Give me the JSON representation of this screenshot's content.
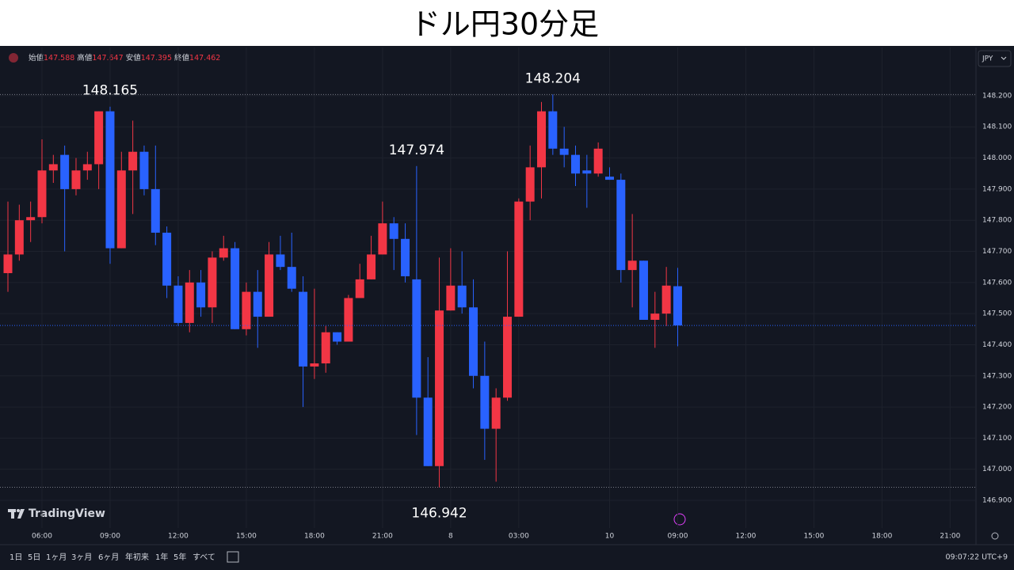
{
  "page_title": "ドル円30分足",
  "header_labels": [
    "始値",
    "高値",
    "安値",
    "終値"
  ],
  "currency": "JPY",
  "logo": "TradingView",
  "toolbar": [
    "1日",
    "5日",
    "1ヶ月",
    "3ヶ月",
    "6ヶ月",
    "年初来",
    "1年",
    "5年",
    "すべて"
  ],
  "clock": "09:07:22 UTC+9",
  "chart_data": {
    "type": "candlestick",
    "categories": [
      null,
      null,
      null,
      "06:00",
      null,
      null,
      null,
      null,
      null,
      "09:00",
      null,
      null,
      null,
      null,
      null,
      "12:00",
      null,
      null,
      null,
      null,
      null,
      "15:00",
      null,
      null,
      null,
      null,
      null,
      "18:00",
      null,
      null,
      null,
      null,
      null,
      "21:00",
      null,
      null,
      null,
      null,
      null,
      "8",
      null,
      null,
      null,
      null,
      null,
      "03:00",
      null,
      null,
      null,
      null,
      null,
      null,
      null,
      "10",
      null,
      null,
      null,
      null,
      null,
      "09:00",
      null,
      null,
      null,
      null,
      null,
      "12:00",
      null,
      null,
      null,
      null,
      null,
      "15:00",
      null,
      null,
      null,
      null,
      null,
      "18:00",
      null,
      null,
      null,
      null,
      null,
      "21:00",
      null,
      null
    ],
    "open": [
      147.63,
      147.69,
      147.8,
      147.81,
      147.96,
      148.01,
      147.9,
      147.96,
      147.98,
      148.15,
      147.71,
      147.96,
      148.02,
      147.9,
      147.76,
      147.59,
      147.47,
      147.6,
      147.52,
      147.68,
      147.71,
      147.45,
      147.57,
      147.49,
      147.69,
      147.65,
      147.57,
      147.33,
      147.34,
      147.44,
      147.41,
      147.55,
      147.61,
      147.69,
      147.79,
      147.74,
      147.61,
      147.23,
      147.01,
      147.51,
      147.59,
      147.52,
      147.3,
      147.13,
      147.23,
      147.49,
      147.86,
      147.97,
      148.15,
      148.03,
      148.01,
      147.96,
      147.95,
      147.94,
      147.93,
      147.64,
      147.67,
      147.48,
      147.5,
      147.588,
      null,
      null,
      null,
      null,
      null,
      null,
      null,
      null,
      null,
      null,
      null,
      null,
      null,
      null,
      null,
      null,
      null,
      null,
      null,
      null,
      null,
      null,
      null,
      null,
      null,
      null
    ],
    "high": [
      147.86,
      147.85,
      147.86,
      148.06,
      148.01,
      148.04,
      148.0,
      148.02,
      148.15,
      148.165,
      148.02,
      148.12,
      148.04,
      148.04,
      147.78,
      147.62,
      147.64,
      147.64,
      147.7,
      147.75,
      147.73,
      147.6,
      147.64,
      147.73,
      147.75,
      147.76,
      147.62,
      147.58,
      147.46,
      147.44,
      147.56,
      147.66,
      147.75,
      147.86,
      147.81,
      147.79,
      147.974,
      147.36,
      147.68,
      147.71,
      147.7,
      147.61,
      147.41,
      147.26,
      147.7,
      147.87,
      148.04,
      148.18,
      148.204,
      148.1,
      148.04,
      148.01,
      148.05,
      147.97,
      147.95,
      147.82,
      147.67,
      147.57,
      147.65,
      147.647,
      null,
      null,
      null,
      null,
      null,
      null,
      null,
      null,
      null,
      null,
      null,
      null,
      null,
      null,
      null,
      null,
      null,
      null,
      null,
      null,
      null,
      null,
      null,
      null,
      null,
      null
    ],
    "low": [
      147.57,
      147.67,
      147.73,
      147.79,
      147.92,
      147.7,
      147.88,
      147.93,
      147.9,
      147.66,
      147.71,
      147.82,
      147.88,
      147.72,
      147.55,
      147.46,
      147.44,
      147.49,
      147.47,
      147.67,
      147.45,
      147.43,
      147.39,
      147.49,
      147.64,
      147.57,
      147.2,
      147.29,
      147.31,
      147.4,
      147.41,
      147.55,
      147.61,
      147.69,
      147.64,
      147.6,
      147.11,
      147.01,
      146.942,
      147.51,
      147.5,
      147.26,
      147.03,
      146.96,
      147.22,
      147.49,
      147.8,
      147.87,
      148.01,
      147.97,
      147.91,
      147.84,
      147.94,
      147.93,
      147.6,
      147.52,
      147.48,
      147.39,
      147.46,
      147.395,
      null,
      null,
      null,
      null,
      null,
      null,
      null,
      null,
      null,
      null,
      null,
      null,
      null,
      null,
      null,
      null,
      null,
      null,
      null,
      null,
      null,
      null,
      null,
      null,
      null,
      null
    ],
    "close": [
      147.69,
      147.8,
      147.81,
      147.96,
      147.98,
      147.9,
      147.96,
      147.98,
      148.15,
      147.71,
      147.96,
      148.02,
      147.9,
      147.76,
      147.59,
      147.47,
      147.6,
      147.52,
      147.68,
      147.71,
      147.45,
      147.57,
      147.49,
      147.69,
      147.65,
      147.58,
      147.33,
      147.34,
      147.44,
      147.41,
      147.55,
      147.61,
      147.69,
      147.79,
      147.74,
      147.62,
      147.23,
      147.01,
      147.51,
      147.59,
      147.52,
      147.3,
      147.13,
      147.23,
      147.49,
      147.86,
      147.97,
      148.15,
      148.03,
      148.01,
      147.95,
      147.95,
      148.03,
      147.93,
      147.64,
      147.67,
      147.48,
      147.5,
      147.59,
      147.462,
      null,
      null,
      null,
      null,
      null,
      null,
      null,
      null,
      null,
      null,
      null,
      null,
      null,
      null,
      null,
      null,
      null,
      null,
      null,
      null,
      null,
      null,
      null,
      null,
      null,
      null
    ],
    "up_color": "#f23645",
    "down_color": "#2962ff",
    "annotations": [
      148.165,
      147.974,
      148.204,
      146.942
    ],
    "ylim": [
      146.811,
      148.355
    ],
    "yticks": [
      {
        "value": 146.9,
        "label": "146.900"
      },
      {
        "value": 147.0,
        "label": "147.000"
      },
      {
        "value": 147.1,
        "label": "147.100"
      },
      {
        "value": 147.2,
        "label": "147.200"
      },
      {
        "value": 147.3,
        "label": "147.300"
      },
      {
        "value": 147.4,
        "label": "147.400"
      },
      {
        "value": 147.5,
        "label": "147.500"
      },
      {
        "value": 147.6,
        "label": "147.600"
      },
      {
        "value": 147.7,
        "label": "147.700"
      },
      {
        "value": 147.8,
        "label": "147.800"
      },
      {
        "value": 147.9,
        "label": "147.900"
      },
      {
        "value": 148.0,
        "label": "148.000"
      },
      {
        "value": 148.1,
        "label": "148.100"
      },
      {
        "value": 148.2,
        "label": "148.200"
      }
    ],
    "grid": true
  }
}
